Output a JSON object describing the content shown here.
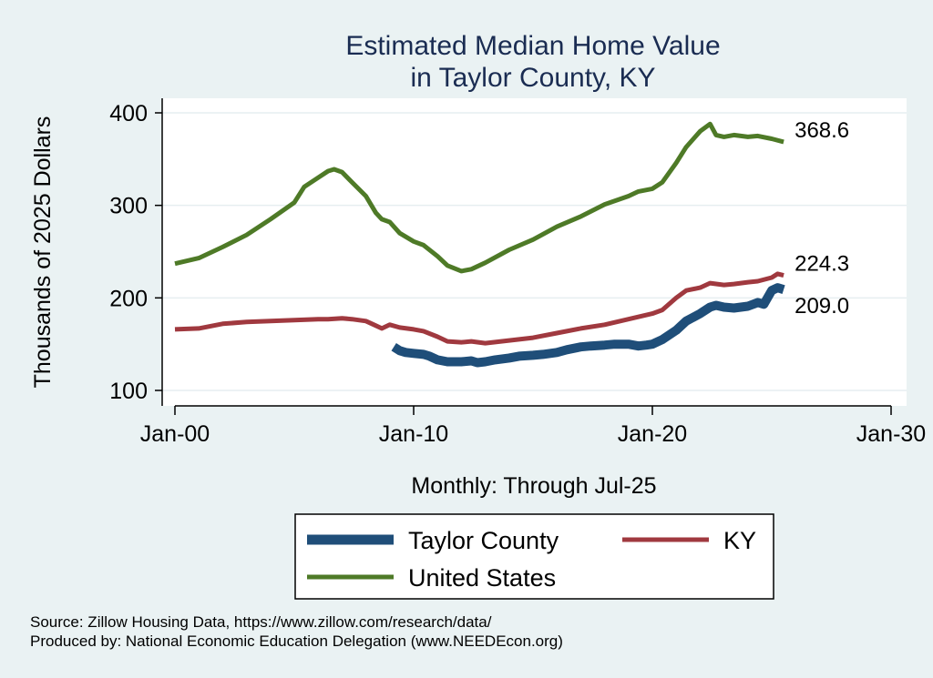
{
  "chart_data": {
    "type": "line",
    "title": [
      "Estimated Median Home Value",
      "in Taylor County, KY"
    ],
    "xlabel": "Monthly: Through Jul-25",
    "ylabel": "Thousands of 2025 Dollars",
    "xlim": [
      "Jan-00",
      "Jan-30"
    ],
    "ylim": [
      100,
      400
    ],
    "x_ticks": [
      "Jan-00",
      "Jan-10",
      "Jan-20",
      "Jan-30"
    ],
    "y_ticks": [
      100,
      200,
      300,
      400
    ],
    "grid": true,
    "legend_position": "bottom",
    "series": [
      {
        "name": "Taylor County",
        "color": "#1f4e79",
        "line_width": "thick",
        "end_label": "209.0",
        "points": [
          [
            "2009-03",
            147
          ],
          [
            "2009-06",
            143
          ],
          [
            "2009-09",
            141
          ],
          [
            "2010-01",
            140
          ],
          [
            "2010-06",
            139
          ],
          [
            "2010-09",
            137
          ],
          [
            "2011-01",
            133
          ],
          [
            "2011-06",
            131
          ],
          [
            "2012-01",
            131
          ],
          [
            "2012-06",
            132
          ],
          [
            "2012-09",
            130
          ],
          [
            "2013-01",
            131
          ],
          [
            "2013-06",
            133
          ],
          [
            "2014-01",
            135
          ],
          [
            "2014-06",
            137
          ],
          [
            "2015-01",
            138
          ],
          [
            "2015-06",
            139
          ],
          [
            "2016-01",
            141
          ],
          [
            "2016-06",
            144
          ],
          [
            "2017-01",
            147
          ],
          [
            "2017-06",
            148
          ],
          [
            "2018-01",
            149
          ],
          [
            "2018-06",
            150
          ],
          [
            "2019-01",
            150
          ],
          [
            "2019-06",
            148
          ],
          [
            "2019-10",
            149
          ],
          [
            "2020-01",
            150
          ],
          [
            "2020-06",
            155
          ],
          [
            "2021-01",
            165
          ],
          [
            "2021-06",
            175
          ],
          [
            "2022-01",
            183
          ],
          [
            "2022-06",
            190
          ],
          [
            "2022-09",
            192
          ],
          [
            "2023-01",
            190
          ],
          [
            "2023-06",
            189
          ],
          [
            "2024-01",
            191
          ],
          [
            "2024-06",
            195
          ],
          [
            "2024-09",
            193
          ],
          [
            "2025-01",
            208
          ],
          [
            "2025-04",
            211
          ],
          [
            "2025-07",
            209
          ]
        ]
      },
      {
        "name": "KY",
        "color": "#a0393f",
        "line_width": "medium",
        "end_label": "224.3",
        "points": [
          [
            "2000-01",
            166
          ],
          [
            "2001-01",
            167
          ],
          [
            "2002-01",
            172
          ],
          [
            "2003-01",
            174
          ],
          [
            "2004-01",
            175
          ],
          [
            "2005-01",
            176
          ],
          [
            "2006-01",
            177
          ],
          [
            "2006-06",
            177
          ],
          [
            "2007-01",
            178
          ],
          [
            "2007-06",
            177
          ],
          [
            "2008-01",
            175
          ],
          [
            "2008-06",
            170
          ],
          [
            "2008-09",
            167
          ],
          [
            "2009-01",
            171
          ],
          [
            "2009-06",
            168
          ],
          [
            "2010-01",
            166
          ],
          [
            "2010-06",
            164
          ],
          [
            "2011-01",
            158
          ],
          [
            "2011-06",
            153
          ],
          [
            "2012-01",
            152
          ],
          [
            "2012-06",
            153
          ],
          [
            "2013-01",
            151
          ],
          [
            "2014-01",
            154
          ],
          [
            "2015-01",
            157
          ],
          [
            "2016-01",
            162
          ],
          [
            "2017-01",
            167
          ],
          [
            "2018-01",
            171
          ],
          [
            "2019-01",
            177
          ],
          [
            "2020-01",
            183
          ],
          [
            "2020-06",
            187
          ],
          [
            "2021-01",
            200
          ],
          [
            "2021-06",
            208
          ],
          [
            "2022-01",
            211
          ],
          [
            "2022-06",
            216
          ],
          [
            "2023-01",
            214
          ],
          [
            "2023-06",
            215
          ],
          [
            "2024-01",
            217
          ],
          [
            "2024-06",
            218
          ],
          [
            "2025-01",
            222
          ],
          [
            "2025-04",
            226
          ],
          [
            "2025-07",
            224.3
          ]
        ]
      },
      {
        "name": "United States",
        "color": "#4e7a27",
        "line_width": "medium",
        "end_label": "368.6",
        "points": [
          [
            "2000-01",
            237
          ],
          [
            "2001-01",
            243
          ],
          [
            "2002-01",
            255
          ],
          [
            "2003-01",
            268
          ],
          [
            "2004-01",
            285
          ],
          [
            "2005-01",
            303
          ],
          [
            "2005-06",
            320
          ],
          [
            "2006-01",
            330
          ],
          [
            "2006-06",
            337
          ],
          [
            "2006-09",
            339
          ],
          [
            "2007-01",
            336
          ],
          [
            "2007-06",
            325
          ],
          [
            "2008-01",
            310
          ],
          [
            "2008-06",
            292
          ],
          [
            "2008-09",
            285
          ],
          [
            "2009-01",
            282
          ],
          [
            "2009-06",
            270
          ],
          [
            "2010-01",
            261
          ],
          [
            "2010-06",
            257
          ],
          [
            "2011-01",
            245
          ],
          [
            "2011-06",
            235
          ],
          [
            "2012-01",
            229
          ],
          [
            "2012-06",
            231
          ],
          [
            "2013-01",
            238
          ],
          [
            "2014-01",
            252
          ],
          [
            "2015-01",
            263
          ],
          [
            "2016-01",
            277
          ],
          [
            "2017-01",
            288
          ],
          [
            "2018-01",
            301
          ],
          [
            "2019-01",
            310
          ],
          [
            "2019-06",
            315
          ],
          [
            "2020-01",
            318
          ],
          [
            "2020-06",
            325
          ],
          [
            "2021-01",
            346
          ],
          [
            "2021-06",
            363
          ],
          [
            "2022-01",
            380
          ],
          [
            "2022-06",
            388
          ],
          [
            "2022-09",
            376
          ],
          [
            "2023-01",
            374
          ],
          [
            "2023-06",
            376
          ],
          [
            "2024-01",
            374
          ],
          [
            "2024-06",
            375
          ],
          [
            "2025-01",
            372
          ],
          [
            "2025-07",
            368.6
          ]
        ]
      }
    ],
    "source_lines": [
      "Source: Zillow Housing Data, https://www.zillow.com/research/data/",
      "Produced by: National Economic Education Delegation (www.NEEDEcon.org)"
    ]
  }
}
